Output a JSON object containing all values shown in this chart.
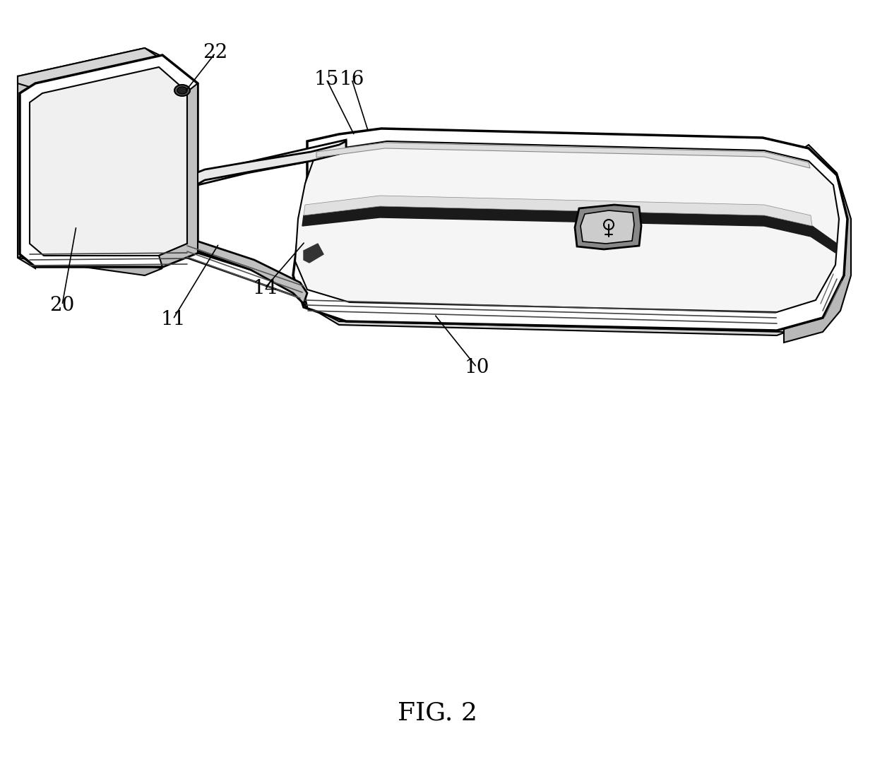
{
  "title": "FIG. 2",
  "bg": "#ffffff",
  "lc": "#000000",
  "gray_light": "#e8e8e8",
  "gray_mid": "#cccccc",
  "gray_dark": "#555555",
  "gray_darker": "#333333",
  "label_fs": 20,
  "leader_lw": 1.2
}
